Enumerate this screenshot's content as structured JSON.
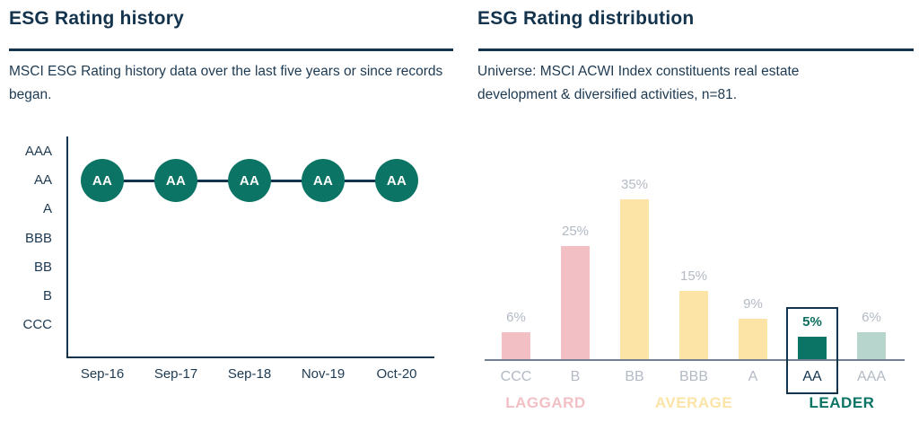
{
  "colors": {
    "navy": "#14334d",
    "body_text": "#1d3a52",
    "green": "#0c7465",
    "green_light": "#b7d4cd",
    "pink": "#f2bfc5",
    "yellow": "#fce4a6",
    "grey_label": "#b3bac4",
    "baseline_grey": "#72808f",
    "highlight_value": "#0d6e5f",
    "marker_text": "#ffffff"
  },
  "left_panel": {
    "title": "ESG Rating history",
    "subtitle": "MSCI ESG Rating history data over the last five years or since records began."
  },
  "right_panel": {
    "title": "ESG Rating distribution",
    "subtitle": "Universe: MSCI ACWI Index constituents real estate development & diversified activities, n=81."
  },
  "chart_data": [
    {
      "type": "line",
      "title": "ESG Rating history",
      "x": [
        "Sep-16",
        "Sep-17",
        "Sep-18",
        "Nov-19",
        "Oct-20"
      ],
      "y_categories_top_to_bottom": [
        "AAA",
        "AA",
        "A",
        "BBB",
        "BB",
        "B",
        "CCC"
      ],
      "values": [
        "AA",
        "AA",
        "AA",
        "AA",
        "AA"
      ],
      "marker": "filled-circle-with-rating-text",
      "marker_color": "#0c7465",
      "marker_text_color": "#ffffff",
      "line_color": "#14334d",
      "grid": false,
      "legend": false
    },
    {
      "type": "bar",
      "title": "ESG Rating distribution",
      "categories": [
        "CCC",
        "B",
        "BB",
        "BBB",
        "A",
        "AA",
        "AAA"
      ],
      "values": [
        6,
        25,
        35,
        15,
        9,
        5,
        6
      ],
      "value_labels": [
        "6%",
        "25%",
        "35%",
        "15%",
        "9%",
        "5%",
        "6%"
      ],
      "bar_colors": [
        "#f2bfc5",
        "#f2bfc5",
        "#fce4a6",
        "#fce4a6",
        "#fce4a6",
        "#0c7465",
        "#b7d4cd"
      ],
      "highlighted_category": "AA",
      "groups": [
        {
          "label": "LAGGARD",
          "color": "#f2bfc5",
          "categories": [
            "CCC",
            "B"
          ]
        },
        {
          "label": "AVERAGE",
          "color": "#fce4a6",
          "categories": [
            "BB",
            "BBB",
            "A"
          ]
        },
        {
          "label": "LEADER",
          "color": "#0c7465",
          "categories": [
            "AA",
            "AAA"
          ]
        }
      ],
      "ylim": [
        0,
        35
      ],
      "grid": false,
      "legend": false
    }
  ]
}
